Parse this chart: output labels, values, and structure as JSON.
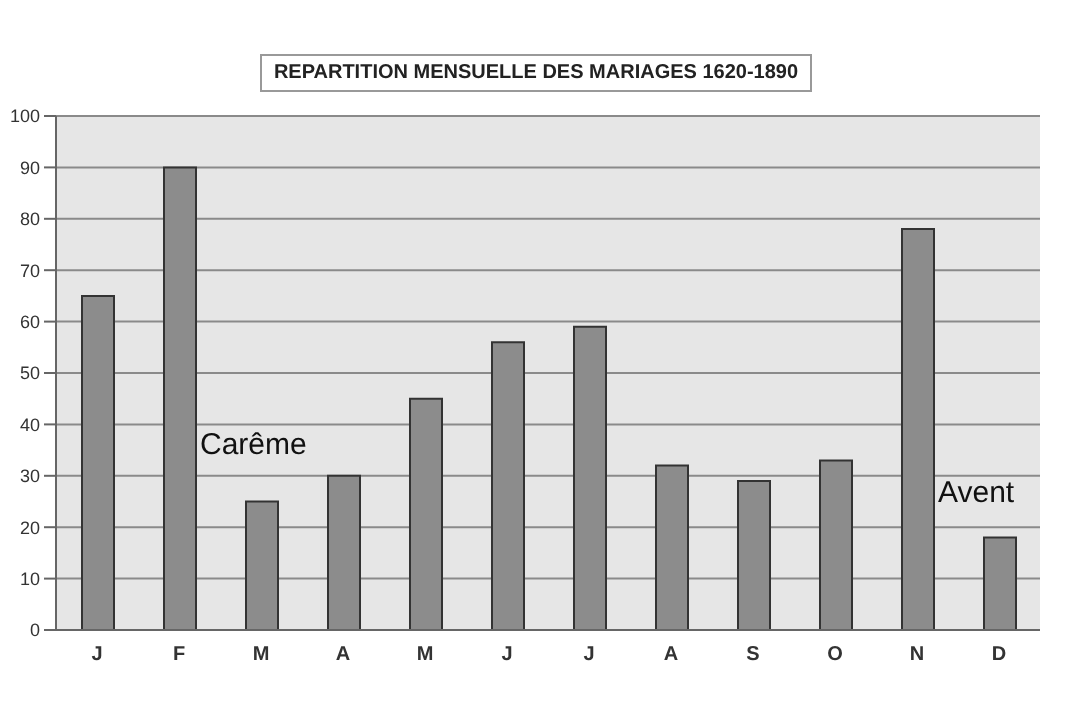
{
  "chart_data": {
    "type": "bar",
    "title": "REPARTITION MENSUELLE DES MARIAGES 1620-1890",
    "categories": [
      "J",
      "F",
      "M",
      "A",
      "M",
      "J",
      "J",
      "A",
      "S",
      "O",
      "N",
      "D"
    ],
    "values": [
      65,
      90,
      25,
      30,
      45,
      56,
      59,
      32,
      29,
      33,
      78,
      18
    ],
    "color": "#8c8c8c",
    "ylim": [
      0,
      100
    ],
    "yticks": [
      0,
      10,
      20,
      30,
      40,
      50,
      60,
      70,
      80,
      90,
      100
    ],
    "grid": "y",
    "annotations": [
      "Carême",
      "Avent"
    ]
  }
}
